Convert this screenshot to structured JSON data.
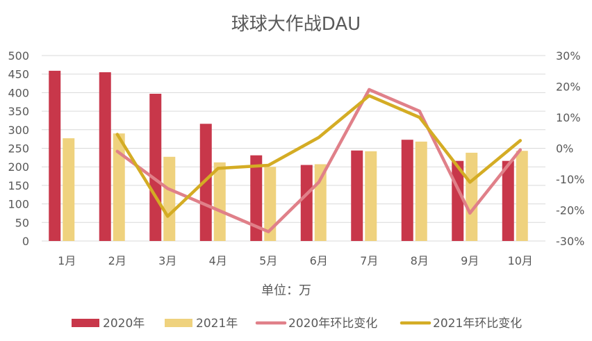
{
  "chart_data": {
    "type": "bar",
    "title": "球球大作战DAU",
    "xlabel": "单位：万",
    "categories": [
      "1月",
      "2月",
      "3月",
      "4月",
      "5月",
      "6月",
      "7月",
      "8月",
      "9月",
      "10月"
    ],
    "ylim": [
      0,
      500
    ],
    "y_ticks": [
      "0",
      "50",
      "100",
      "150",
      "200",
      "250",
      "300",
      "350",
      "400",
      "450",
      "500"
    ],
    "y2lim": [
      -30,
      30
    ],
    "y2_ticks": [
      "-30%",
      "-20%",
      "-10%",
      "0%",
      "10%",
      "20%",
      "30%"
    ],
    "grid": true,
    "legend_position": "bottom",
    "series": [
      {
        "name": "2020年",
        "type": "bar",
        "axis": "left",
        "color": "#C8374A",
        "values": [
          459,
          455,
          397,
          316,
          231,
          205,
          244,
          273,
          216,
          216
        ]
      },
      {
        "name": "2021年",
        "type": "bar",
        "axis": "right-secondary-none",
        "color": "#EFD27E",
        "values": [
          277,
          290,
          227,
          212,
          200,
          207,
          242,
          268,
          238,
          243
        ]
      },
      {
        "name": "2020年环比变化",
        "type": "line",
        "axis": "right",
        "color": "#E08089",
        "values": [
          null,
          -1,
          -13,
          -20,
          -27,
          -11,
          19,
          12,
          -21,
          -0.5
        ]
      },
      {
        "name": "2021年环比变化",
        "type": "line",
        "axis": "right",
        "color": "#D4AC24",
        "values": [
          null,
          4.5,
          -22,
          -6.5,
          -5.5,
          3.5,
          17,
          10,
          -11,
          2.5
        ]
      }
    ]
  }
}
